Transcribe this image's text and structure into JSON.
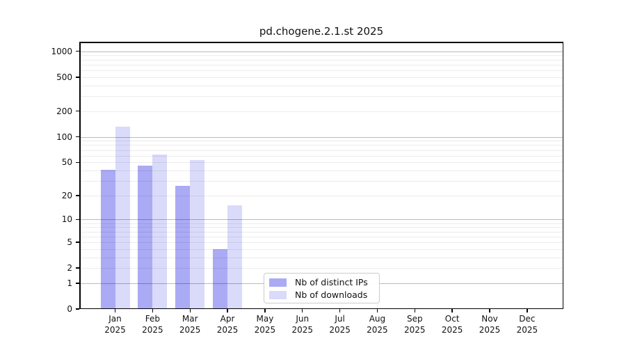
{
  "title": "pd.chogene.2.1.st 2025",
  "chart_data": {
    "type": "bar",
    "title": "pd.chogene.2.1.st 2025",
    "year_label": "2025",
    "categories": [
      "Jan",
      "Feb",
      "Mar",
      "Apr",
      "May",
      "Jun",
      "Jul",
      "Aug",
      "Sep",
      "Oct",
      "Nov",
      "Dec"
    ],
    "series": [
      {
        "name": "Nb of distinct IPs",
        "color": "#aaaaf5",
        "values": [
          41,
          46,
          26,
          4,
          null,
          null,
          null,
          null,
          null,
          null,
          null,
          null
        ]
      },
      {
        "name": "Nb of downloads",
        "color": "#dadafa",
        "values": [
          133,
          62,
          53,
          15,
          null,
          null,
          null,
          null,
          null,
          null,
          null,
          null
        ]
      }
    ],
    "y_ticks": [
      0,
      1,
      2,
      5,
      10,
      20,
      50,
      100,
      200,
      500,
      1000
    ],
    "y_scale": "log10(1+value)",
    "ylim": [
      0,
      1300
    ],
    "grid": "horizontal log gridlines, darker at powers of 10",
    "legend_position": "inside lower-left-of-center"
  },
  "legend": {
    "items": [
      {
        "label": "Nb of distinct IPs",
        "color": "#aaaaf5"
      },
      {
        "label": "Nb of downloads",
        "color": "#dadafa"
      }
    ]
  }
}
